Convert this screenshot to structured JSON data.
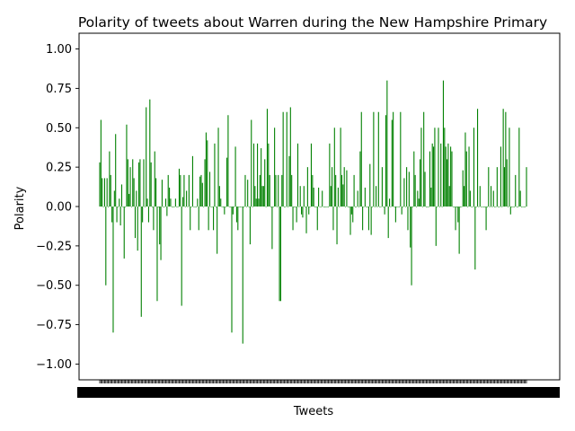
{
  "chart_data": {
    "type": "bar",
    "title": "Polarity of tweets about Warren during the New Hampshire Primary",
    "xlabel": "Tweets",
    "ylabel": "Polarity",
    "ylim": [
      -1.1,
      1.1
    ],
    "yticks": [
      "1.00",
      "0.75",
      "0.50",
      "0.25",
      "0.00",
      "−0.25",
      "−0.50",
      "−0.75",
      "−1.00"
    ],
    "ytick_values": [
      1.0,
      0.75,
      0.5,
      0.25,
      0.0,
      -0.25,
      -0.5,
      -0.75,
      -1.0
    ],
    "bar_color": "#008000",
    "grid": false,
    "series": [
      {
        "values": [
          0.28,
          0.55,
          0.18,
          0.0,
          0.18,
          -0.5,
          0.18,
          0.0,
          0.35,
          0.2,
          -0.1,
          -0.8,
          0.1,
          0.46,
          -0.1,
          0.0,
          0.05,
          -0.12,
          0.14,
          0.0,
          -0.33,
          0.0,
          0.52,
          0.3,
          0.08,
          0.25,
          0.0,
          0.3,
          0.18,
          -0.2,
          0.1,
          -0.28,
          0.28,
          0.3,
          -0.7,
          -0.1,
          0.3,
          0.0,
          0.63,
          0.05,
          -0.1,
          0.68,
          0.28,
          0.0,
          -0.15,
          0.35,
          0.18,
          -0.6,
          0.0,
          -0.24,
          -0.34,
          0.17,
          0.0,
          0.0,
          0.05,
          -0.06,
          0.2,
          0.12,
          0.05,
          0.0,
          0.0,
          0.0,
          0.05,
          0.0,
          0.0,
          0.24,
          0.2,
          -0.63,
          0.06,
          0.2,
          0.0,
          0.1,
          0.0,
          0.2,
          -0.15,
          0.0,
          0.32,
          0.0,
          0.0,
          0.0,
          0.05,
          -0.15,
          0.19,
          0.2,
          0.15,
          0.0,
          0.3,
          0.47,
          0.42,
          -0.15,
          0.22,
          0.0,
          0.0,
          -0.15,
          0.4,
          0.0,
          -0.3,
          0.5,
          0.13,
          0.05,
          0.0,
          0.0,
          -0.05,
          0.0,
          0.31,
          0.58,
          0.0,
          0.0,
          -0.8,
          -0.05,
          0.0,
          0.38,
          -0.1,
          -0.15,
          0.0,
          0.0,
          0.0,
          -0.87,
          0.0,
          0.2,
          0.0,
          0.17,
          0.0,
          -0.24,
          0.55,
          0.0,
          0.4,
          0.13,
          0.05,
          0.4,
          0.05,
          0.2,
          0.37,
          0.13,
          0.13,
          0.3,
          0.0,
          0.62,
          0.4,
          0.2,
          0.0,
          -0.27,
          0.0,
          0.5,
          0.2,
          0.0,
          0.2,
          -0.6,
          -0.6,
          0.2,
          0.6,
          0.0,
          0.0,
          0.6,
          0.0,
          0.32,
          0.63,
          0.2,
          -0.15,
          0.0,
          0.0,
          -0.1,
          0.4,
          0.0,
          0.13,
          -0.05,
          -0.07,
          0.13,
          0.0,
          -0.17,
          0.25,
          -0.05,
          0.0,
          0.4,
          0.2,
          0.12,
          0.0,
          0.0,
          -0.15,
          0.12,
          0.0,
          0.0,
          0.1,
          0.0,
          0.0,
          0.0,
          0.0,
          0.0,
          0.4,
          0.13,
          0.25,
          -0.15,
          0.5,
          0.2,
          -0.24,
          0.12,
          0.0,
          0.5,
          0.2,
          0.14,
          0.25,
          0.0,
          0.23,
          0.0,
          0.0,
          -0.18,
          -0.05,
          -0.1,
          0.2,
          0.0,
          0.0,
          0.1,
          0.0,
          0.35,
          0.6,
          -0.15,
          0.0,
          0.12,
          0.0,
          0.0,
          -0.15,
          0.27,
          -0.18,
          0.0,
          0.6,
          0.0,
          0.13,
          0.0,
          0.6,
          0.0,
          0.0,
          0.25,
          0.0,
          -0.05,
          0.58,
          0.8,
          -0.2,
          0.05,
          0.0,
          0.55,
          0.6,
          0.0,
          -0.1,
          0.0,
          0.0,
          0.0,
          0.6,
          -0.05,
          0.0,
          0.18,
          0.0,
          0.25,
          -0.15,
          0.22,
          -0.26,
          -0.5,
          0.0,
          0.35,
          0.2,
          0.0,
          0.1,
          0.05,
          0.3,
          0.5,
          0.0,
          0.6,
          0.22,
          0.0,
          0.0,
          0.0,
          0.35,
          0.12,
          0.4,
          0.38,
          0.5,
          -0.25,
          0.0,
          0.5,
          0.0,
          0.4,
          0.0,
          0.8,
          0.5,
          0.38,
          0.3,
          0.4,
          0.13,
          0.38,
          0.35,
          0.0,
          0.0,
          -0.15,
          0.0,
          -0.1,
          -0.3,
          0.0,
          0.0,
          0.23,
          0.13,
          0.47,
          0.35,
          0.0,
          0.38,
          0.1,
          0.0,
          0.0,
          0.5,
          -0.4,
          0.0,
          0.62,
          0.0,
          0.13,
          0.0,
          0.0,
          0.0,
          0.0,
          -0.15,
          0.0,
          0.25,
          0.0,
          0.13,
          0.0,
          0.1,
          0.0,
          0.0,
          0.25,
          0.0,
          0.0,
          0.38,
          0.0,
          0.62,
          0.25,
          0.6,
          0.3,
          0.0,
          0.5,
          -0.05,
          0.0,
          0.0,
          0.0,
          0.2,
          0.0,
          0.0,
          0.5,
          0.1,
          0.0,
          0.0,
          0.0,
          0.0,
          0.25
        ]
      }
    ]
  }
}
